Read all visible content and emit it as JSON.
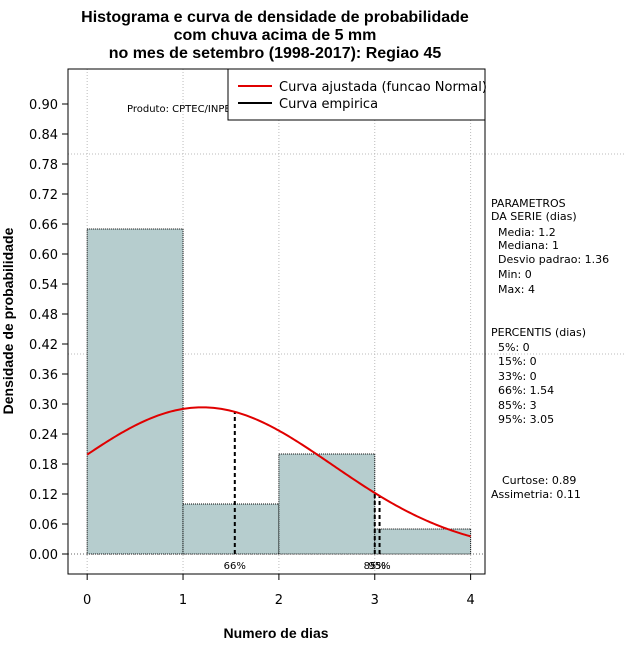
{
  "chart_data": {
    "type": "bar",
    "title_lines": [
      "Histograma e curva de densidade de probabilidade",
      "com chuva acima de 5 mm",
      "no mes de setembro (1998-2017): Regiao 45"
    ],
    "xlabel": "Numero de dias",
    "ylabel": "Densidade de probabilidade",
    "xlim": [
      -0.2,
      4.15
    ],
    "ylim": [
      -0.04,
      0.97
    ],
    "xticks": [
      0,
      1,
      2,
      3,
      4
    ],
    "yticks": [
      0.0,
      0.06,
      0.12,
      0.18,
      0.24,
      0.3,
      0.36,
      0.42,
      0.48,
      0.54,
      0.6,
      0.66,
      0.72,
      0.78,
      0.84,
      0.9
    ],
    "ytick_labels": [
      "0.00",
      "0.06",
      "0.12",
      "0.18",
      "0.24",
      "0.30",
      "0.36",
      "0.42",
      "0.48",
      "0.54",
      "0.60",
      "0.66",
      "0.72",
      "0.78",
      "0.84",
      "0.90"
    ],
    "bars": [
      {
        "x0": 0,
        "x1": 1,
        "density": 0.65
      },
      {
        "x0": 1,
        "x1": 2,
        "density": 0.1
      },
      {
        "x0": 2,
        "x1": 3,
        "density": 0.2
      },
      {
        "x0": 3,
        "x1": 4,
        "density": 0.05
      }
    ],
    "normal_fit": {
      "mean": 1.2,
      "sd": 1.36,
      "x_from": 0,
      "x_to": 4
    },
    "percentile_lines": [
      {
        "x": 1.54,
        "label": "66%"
      },
      {
        "x": 3.0,
        "label": "85%"
      },
      {
        "x": 3.05,
        "label": "95%"
      }
    ],
    "hgrid_dotted": [
      0.8,
      0.4
    ],
    "credit": "Produto: CPTEC/INPE",
    "legend": [
      {
        "label": "Curva ajustada (funcao Normal)",
        "color": "#e00000"
      },
      {
        "label": "Curva empirica",
        "color": "#000000"
      }
    ],
    "colors": {
      "bar_fill": "#b6cdce",
      "curve": "#e00000",
      "grid": "#bbbbbb"
    },
    "stats": {
      "params_header": [
        "PARAMETROS",
        "DA SERIE (dias)"
      ],
      "params": [
        "Media: 1.2",
        "Mediana: 1",
        "Desvio padrao: 1.36",
        "Min: 0",
        "Max: 4"
      ],
      "percentiles_header": "PERCENTIS (dias)",
      "percentiles": [
        "5%: 0",
        "15%: 0",
        "33%: 0",
        "66%: 1.54",
        "85%: 3",
        "95%: 3.05"
      ],
      "curtose": "Curtose: 0.89",
      "assimetria": "Assimetria: 0.11"
    }
  }
}
